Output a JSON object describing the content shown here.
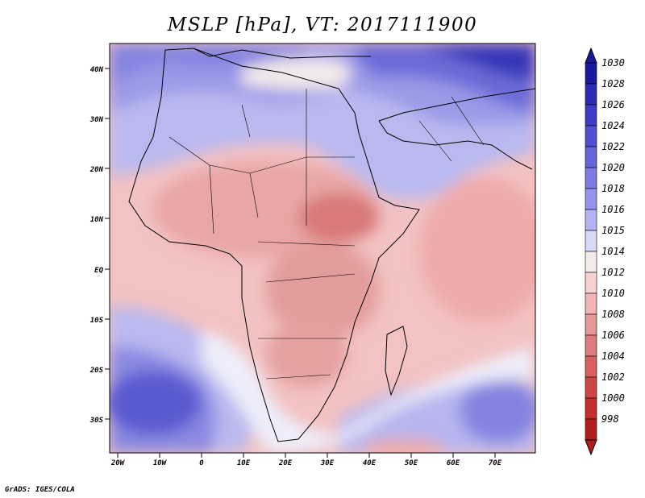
{
  "title": "MSLP [hPa], VT: 2017111900",
  "footer": "GrADS: IGES/COLA",
  "axes": {
    "lat_ticks": [
      "40N",
      "30N",
      "20N",
      "10N",
      "EQ",
      "10S",
      "20S",
      "30S"
    ],
    "lon_ticks": [
      "20W",
      "10W",
      "0",
      "10E",
      "20E",
      "30E",
      "40E",
      "50E",
      "60E",
      "70E"
    ]
  },
  "colorbar": {
    "levels": [
      "1030",
      "1028",
      "1026",
      "1024",
      "1022",
      "1020",
      "1018",
      "1016",
      "1015",
      "1014",
      "1012",
      "1010",
      "1008",
      "1006",
      "1004",
      "1002",
      "1000",
      "998"
    ],
    "colors": [
      "#1a1a9e",
      "#2b2bb3",
      "#3c3cc4",
      "#5050d0",
      "#6565da",
      "#7b7be2",
      "#9494ea",
      "#b3b3f2",
      "#d8d8f8",
      "#f4eaea",
      "#f7d0d0",
      "#f0b4b4",
      "#e49898",
      "#dc7c7c",
      "#d86060",
      "#d04444",
      "#c42e2e",
      "#b01c1c"
    ]
  }
}
